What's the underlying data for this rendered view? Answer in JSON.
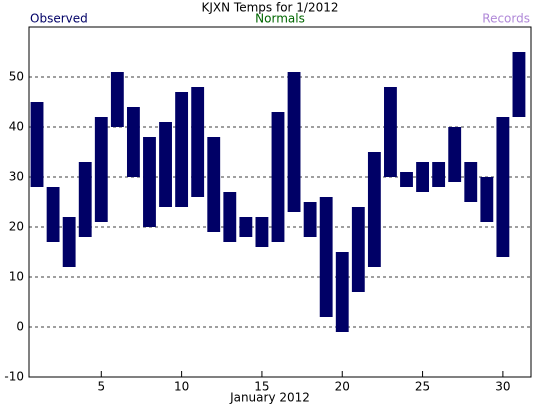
{
  "chart_data": {
    "type": "floating-bar",
    "title": "KJXN Temps for 1/2012",
    "x_label": "January 2012",
    "legend_entries": [
      {
        "name": "Observed",
        "color": "#000066"
      },
      {
        "name": "Normals",
        "color": "#006600"
      },
      {
        "name": "Records",
        "color": "#b088d8"
      }
    ],
    "x": [
      1,
      2,
      3,
      4,
      5,
      6,
      7,
      8,
      9,
      10,
      11,
      12,
      13,
      14,
      15,
      16,
      17,
      18,
      19,
      20,
      21,
      22,
      23,
      24,
      25,
      26,
      27,
      28,
      29,
      30,
      31
    ],
    "series": [
      {
        "name": "Observed",
        "color": "#000066",
        "low": [
          28,
          17,
          12,
          18,
          21,
          40,
          30,
          20,
          24,
          24,
          26,
          19,
          17,
          18,
          16,
          17,
          23,
          18,
          2,
          -1,
          7,
          12,
          30,
          28,
          27,
          28,
          29,
          25,
          21,
          14,
          42
        ],
        "high": [
          45,
          28,
          22,
          33,
          42,
          51,
          44,
          38,
          41,
          47,
          48,
          38,
          27,
          22,
          22,
          43,
          51,
          25,
          26,
          15,
          24,
          35,
          48,
          31,
          33,
          33,
          40,
          33,
          30,
          42,
          55
        ]
      }
    ],
    "xlim": [
      0.5,
      31.75
    ],
    "xticks": [
      5,
      10,
      15,
      20,
      25,
      30
    ],
    "ylim": [
      -10,
      60
    ],
    "yticks": [
      -10,
      0,
      10,
      20,
      30,
      40,
      50
    ],
    "grid": true
  }
}
